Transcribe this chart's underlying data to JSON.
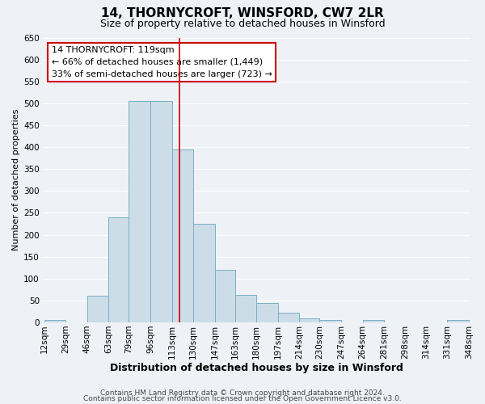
{
  "title": "14, THORNYCROFT, WINSFORD, CW7 2LR",
  "subtitle": "Size of property relative to detached houses in Winsford",
  "xlabel": "Distribution of detached houses by size in Winsford",
  "ylabel": "Number of detached properties",
  "bar_edges": [
    12,
    29,
    46,
    63,
    79,
    96,
    113,
    130,
    147,
    163,
    180,
    197,
    214,
    230,
    247,
    264,
    281,
    298,
    314,
    331,
    348
  ],
  "bar_heights": [
    5,
    0,
    60,
    240,
    505,
    505,
    395,
    225,
    120,
    63,
    45,
    23,
    10,
    5,
    0,
    5,
    0,
    0,
    0,
    5
  ],
  "bar_color": "#ccdde8",
  "bar_edgecolor": "#7aafc8",
  "ylim": [
    0,
    650
  ],
  "yticks": [
    0,
    50,
    100,
    150,
    200,
    250,
    300,
    350,
    400,
    450,
    500,
    550,
    600,
    650
  ],
  "vline_x": 119,
  "vline_color": "#cc0000",
  "annotation_title": "14 THORNYCROFT: 119sqm",
  "annotation_line1": "← 66% of detached houses are smaller (1,449)",
  "annotation_line2": "33% of semi-detached houses are larger (723) →",
  "annotation_box_edgecolor": "#cc0000",
  "footer1": "Contains HM Land Registry data © Crown copyright and database right 2024.",
  "footer2": "Contains public sector information licensed under the Open Government Licence v3.0.",
  "bg_color": "#eef2f7",
  "grid_color": "#ffffff",
  "title_fontsize": 11,
  "subtitle_fontsize": 9,
  "ylabel_fontsize": 8,
  "xlabel_fontsize": 9,
  "tick_label_size": 7.5,
  "annotation_fontsize": 8,
  "footer_fontsize": 6.5
}
